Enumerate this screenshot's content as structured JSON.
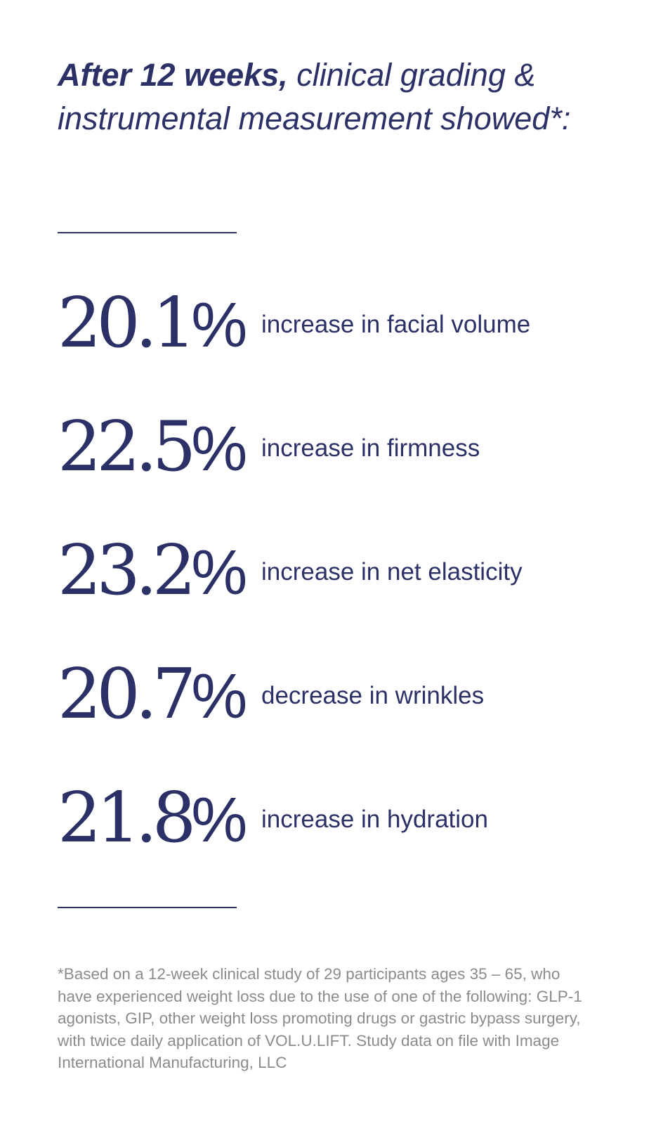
{
  "headline": {
    "bold_part": "After 12 weeks,",
    "rest": " clinical grading & instrumental measurement showed*:"
  },
  "stats": [
    {
      "value": "20.1",
      "unit": "%",
      "label": "increase in facial volume"
    },
    {
      "value": "22.5",
      "unit": "%",
      "label": "increase in firmness"
    },
    {
      "value": "23.2",
      "unit": "%",
      "label": "increase in net elasticity"
    },
    {
      "value": "20.7",
      "unit": "%",
      "label": "decrease in wrinkles"
    },
    {
      "value": "21.8",
      "unit": "%",
      "label": "increase in hydration"
    }
  ],
  "footnote": "*Based on a 12-week clinical study of 29 participants ages 35 – 65, who have experienced weight loss due to the use of one of the following: GLP-1 agonists, GIP, other weight loss promoting drugs or gastric bypass surgery, with twice daily application of VOL.U.LIFT. Study data on file with Image International Manufacturing, LLC",
  "colors": {
    "primary": "#2b3066",
    "footnote": "#8b8b8b",
    "background": "#ffffff"
  }
}
